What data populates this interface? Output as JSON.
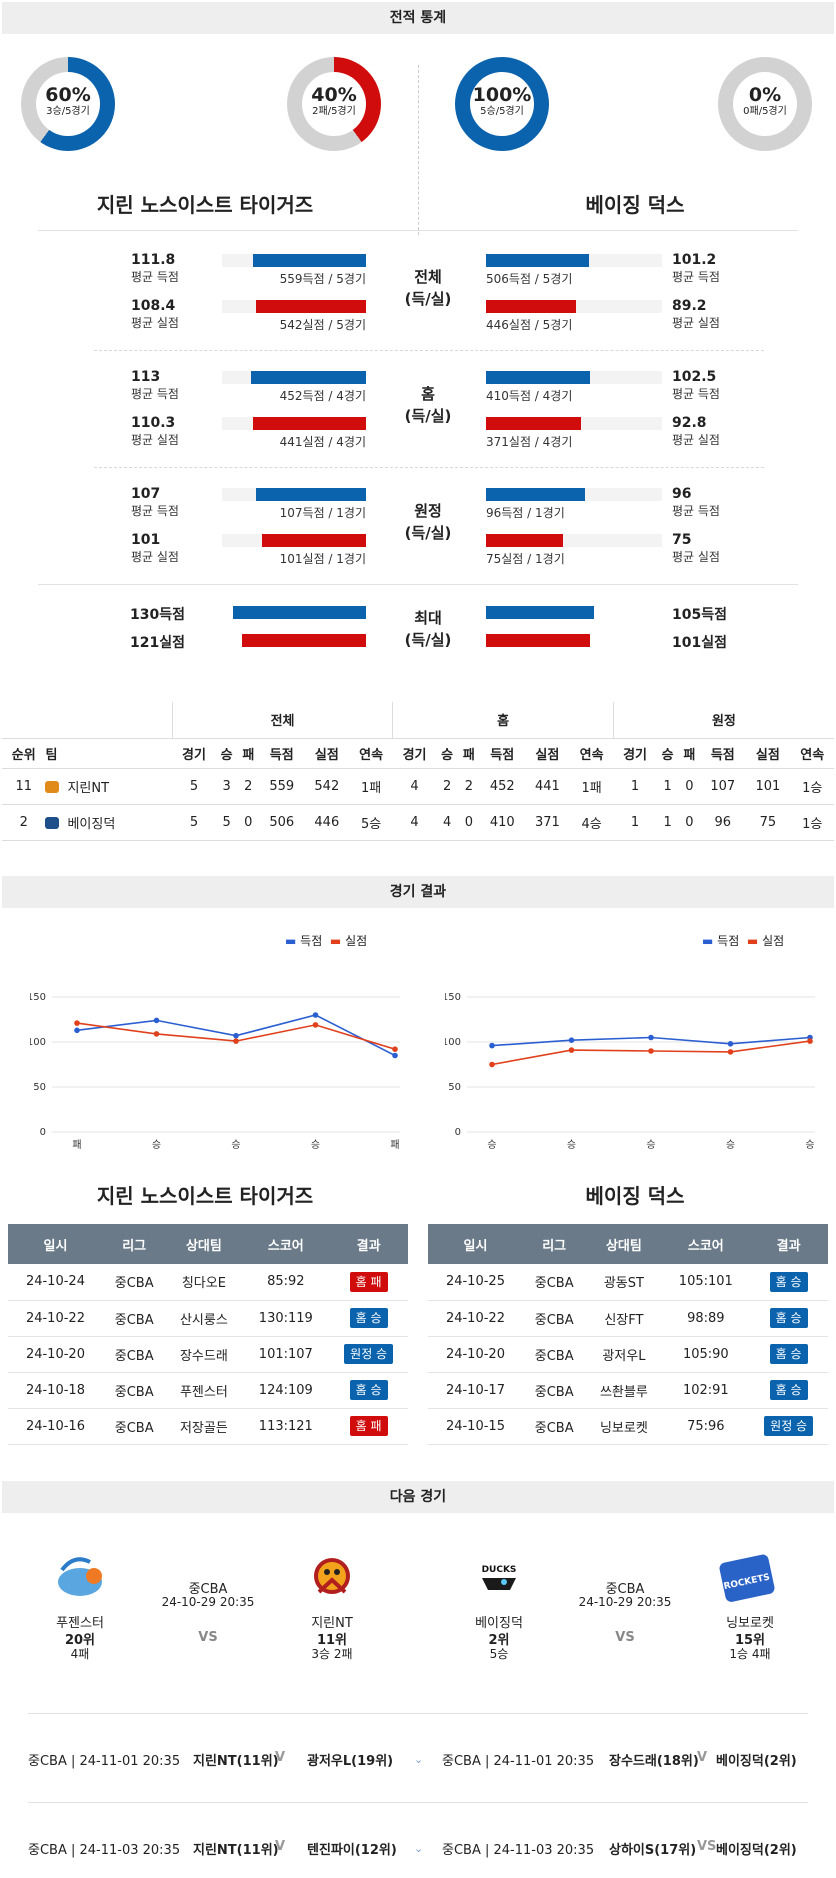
{
  "sections": {
    "stats": "전적 통계",
    "results": "경기 결과",
    "next": "다음 경기"
  },
  "donuts": [
    {
      "pct": "60%",
      "sub": "3승/5경기",
      "value": 0.6,
      "color": "#0b63ad"
    },
    {
      "pct": "40%",
      "sub": "2패/5경기",
      "value": 0.4,
      "color": "#d00c0c"
    },
    {
      "pct": "100%",
      "sub": "5승/5경기",
      "value": 1.0,
      "color": "#0b63ad"
    },
    {
      "pct": "0%",
      "sub": "0패/5경기",
      "value": 0.0,
      "color": "#d00c0c"
    }
  ],
  "teams": {
    "left": "지린 노스이스트 타이거즈",
    "right": "베이징 덕스"
  },
  "compare": [
    {
      "mid": [
        "전체",
        "(득/실)"
      ],
      "rows": [
        {
          "lv": "111.8",
          "ls": "평균 득점",
          "lbar": "559득점 / 5경기",
          "lw": 0.63,
          "rv": "101.2",
          "rs": "평균 득점",
          "rbar": "506득점 / 5경기",
          "rw": 0.57,
          "c": "blue"
        },
        {
          "lv": "108.4",
          "ls": "평균 실점",
          "lbar": "542실점 / 5경기",
          "lw": 0.61,
          "rv": "89.2",
          "rs": "평균 실점",
          "rbar": "446실점 / 5경기",
          "rw": 0.5,
          "c": "red"
        }
      ]
    },
    {
      "mid": [
        "홈",
        "(득/실)"
      ],
      "rows": [
        {
          "lv": "113",
          "ls": "평균 득점",
          "lbar": "452득점 / 4경기",
          "lw": 0.64,
          "rv": "102.5",
          "rs": "평균 득점",
          "rbar": "410득점 / 4경기",
          "rw": 0.58,
          "c": "blue"
        },
        {
          "lv": "110.3",
          "ls": "평균 실점",
          "lbar": "441실점 / 4경기",
          "lw": 0.63,
          "rv": "92.8",
          "rs": "평균 실점",
          "rbar": "371실점 / 4경기",
          "rw": 0.53,
          "c": "red"
        }
      ]
    },
    {
      "mid": [
        "원정",
        "(득/실)"
      ],
      "rows": [
        {
          "lv": "107",
          "ls": "평균 득점",
          "lbar": "107득점 / 1경기",
          "lw": 0.61,
          "rv": "96",
          "rs": "평균 득점",
          "rbar": "96득점 / 1경기",
          "rw": 0.55,
          "c": "blue"
        },
        {
          "lv": "101",
          "ls": "평균 실점",
          "lbar": "101실점 / 1경기",
          "lw": 0.58,
          "rv": "75",
          "rs": "평균 실점",
          "rbar": "75실점 / 1경기",
          "rw": 0.43,
          "c": "red"
        }
      ]
    }
  ],
  "maxrow": {
    "mid": [
      "최대",
      "(득/실)"
    ],
    "l1": "130득점",
    "l2": "121실점",
    "r1": "105득점",
    "r2": "101실점",
    "lw1": 0.74,
    "lw2": 0.69,
    "rw1": 0.6,
    "rw2": 0.58
  },
  "rank": {
    "groups": [
      "전체",
      "홈",
      "원정"
    ],
    "cols": [
      "순위",
      "팀",
      "경기",
      "승",
      "패",
      "득점",
      "실점",
      "연속",
      "경기",
      "승",
      "패",
      "득점",
      "실점",
      "연속",
      "경기",
      "승",
      "패",
      "득점",
      "실점",
      "연속"
    ],
    "rows": [
      [
        "11",
        "지린NT",
        "5",
        "3",
        "2",
        "559",
        "542",
        "1패",
        "4",
        "2",
        "2",
        "452",
        "441",
        "1패",
        "1",
        "1",
        "0",
        "107",
        "101",
        "1승"
      ],
      [
        "2",
        "베이징덕",
        "5",
        "5",
        "0",
        "506",
        "446",
        "5승",
        "4",
        "4",
        "0",
        "410",
        "371",
        "4승",
        "1",
        "1",
        "0",
        "96",
        "75",
        "1승"
      ]
    ]
  },
  "chart_legend": {
    "score": "득점",
    "loss": "실점"
  },
  "chart_data": [
    {
      "type": "line",
      "categories": [
        "패",
        "승",
        "승",
        "승",
        "패"
      ],
      "series": [
        {
          "name": "득점",
          "values": [
            113,
            124,
            107,
            130,
            85
          ],
          "color": "#2b5fd1"
        },
        {
          "name": "실점",
          "values": [
            121,
            109,
            101,
            119,
            92
          ],
          "color": "#e0411c"
        }
      ],
      "ylim": [
        0,
        150
      ],
      "yticks": [
        0,
        50,
        100,
        150
      ],
      "grid": true,
      "legend": "top-right"
    },
    {
      "type": "line",
      "categories": [
        "승",
        "승",
        "승",
        "승",
        "승"
      ],
      "series": [
        {
          "name": "득점",
          "values": [
            96,
            102,
            105,
            98,
            105
          ],
          "color": "#2b5fd1"
        },
        {
          "name": "실점",
          "values": [
            75,
            91,
            90,
            89,
            101
          ],
          "color": "#e0411c"
        }
      ],
      "ylim": [
        0,
        150
      ],
      "yticks": [
        0,
        50,
        100,
        150
      ],
      "grid": true,
      "legend": "top-right"
    }
  ],
  "results": {
    "headers": [
      "일시",
      "리그",
      "상대팀",
      "스코어",
      "결과"
    ],
    "left": [
      [
        "24-10-24",
        "중CBA",
        "칭다오E",
        "85:92",
        "홈 패",
        "red"
      ],
      [
        "24-10-22",
        "중CBA",
        "산시룽스",
        "130:119",
        "홈 승",
        "blue"
      ],
      [
        "24-10-20",
        "중CBA",
        "장수드래",
        "101:107",
        "원정 승",
        "blue"
      ],
      [
        "24-10-18",
        "중CBA",
        "푸젠스터",
        "124:109",
        "홈 승",
        "blue"
      ],
      [
        "24-10-16",
        "중CBA",
        "저장골든",
        "113:121",
        "홈 패",
        "red"
      ]
    ],
    "right": [
      [
        "24-10-25",
        "중CBA",
        "광동ST",
        "105:101",
        "홈 승",
        "blue"
      ],
      [
        "24-10-22",
        "중CBA",
        "신장FT",
        "98:89",
        "홈 승",
        "blue"
      ],
      [
        "24-10-20",
        "중CBA",
        "광저우L",
        "105:90",
        "홈 승",
        "blue"
      ],
      [
        "24-10-17",
        "중CBA",
        "쓰촨블루",
        "102:91",
        "홈 승",
        "blue"
      ],
      [
        "24-10-15",
        "중CBA",
        "닝보로켓",
        "75:96",
        "원정 승",
        "blue"
      ]
    ]
  },
  "next": {
    "left": {
      "home": "푸젠스터",
      "home_rank": "20위",
      "home_rec": "4패",
      "league": "중CBA",
      "time": "24-10-29 20:35",
      "vs": "VS",
      "away": "지린NT",
      "away_rank": "11위",
      "away_rec": "3승 2패"
    },
    "right": {
      "home": "베이징덕",
      "home_rank": "2위",
      "home_rec": "5승",
      "league": "중CBA",
      "time": "24-10-29 20:35",
      "vs": "VS",
      "away": "닝보로켓",
      "away_rank": "15위",
      "away_rec": "1승 4패",
      "away_logo": "ROCKETS",
      "home_logo": "DUCKS"
    }
  },
  "upcoming": [
    {
      "l_info": "중CBA | 24-11-01 20:35",
      "l_match": "지린NT(11위)",
      "l_v": "V",
      "l_opp": "광저우L(19위)",
      "r_info": "중CBA | 24-11-01 20:35",
      "r_match": "장수드래(18위)",
      "r_v": "V",
      "r_opp": "베이징덕(2위)"
    },
    {
      "l_info": "중CBA | 24-11-03 20:35",
      "l_match": "지린NT(11위)",
      "l_v": "V",
      "l_opp": "텐진파이(12위)",
      "r_info": "중CBA | 24-11-03 20:35",
      "r_match": "상하이S(17위)",
      "r_v": "VS",
      "r_opp": "베이징덕(2위)"
    }
  ]
}
